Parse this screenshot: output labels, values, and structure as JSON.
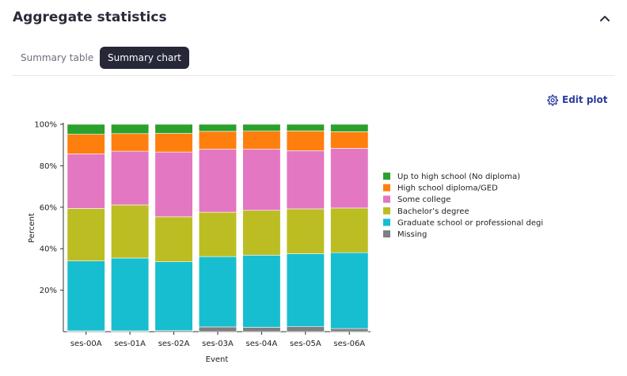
{
  "header": {
    "title": "Aggregate statistics"
  },
  "tabs": [
    {
      "label": "Summary table"
    },
    {
      "label": "Summary chart"
    }
  ],
  "toolbar": {
    "edit_plot_label": "Edit plot"
  },
  "icons": {
    "collapse": "chevron-up-icon",
    "edit": "gear-icon"
  },
  "chart_data": {
    "type": "bar",
    "stacked": true,
    "xlabel": "Event",
    "ylabel": "Percent",
    "ylim": [
      0,
      100
    ],
    "yticks": [
      "20%",
      "40%",
      "60%",
      "80%",
      "100%"
    ],
    "categories": [
      "ses-00A",
      "ses-01A",
      "ses-02A",
      "ses-03A",
      "ses-04A",
      "ses-05A",
      "ses-06A"
    ],
    "series": [
      {
        "name": "Missing",
        "color": "#7f7f7f",
        "values": [
          0.4,
          0.4,
          0.5,
          2.3,
          2.1,
          2.4,
          1.5
        ]
      },
      {
        "name": "Graduate school or professional degi",
        "color": "#17becf",
        "values": [
          33.7,
          35.1,
          33.2,
          33.9,
          34.8,
          35.2,
          36.6
        ]
      },
      {
        "name": "Bachelor’s degree",
        "color": "#bcbd22",
        "values": [
          25.3,
          25.6,
          21.7,
          21.4,
          21.6,
          21.6,
          21.5
        ]
      },
      {
        "name": "Some college",
        "color": "#e377c2",
        "values": [
          26.3,
          25.9,
          31.2,
          30.4,
          29.5,
          28.1,
          28.8
        ]
      },
      {
        "name": "High school diploma/GED",
        "color": "#ff7f0e",
        "values": [
          9.5,
          8.5,
          9.0,
          8.6,
          8.7,
          9.5,
          8.0
        ]
      },
      {
        "name": "Up to high school (No diploma)",
        "color": "#2ca02c",
        "values": [
          4.8,
          4.5,
          4.4,
          3.4,
          3.3,
          3.2,
          3.6
        ]
      }
    ],
    "legend_order": [
      "Up to high school (No diploma)",
      "High school diploma/GED",
      "Some college",
      "Bachelor’s degree",
      "Graduate school or professional degi",
      "Missing"
    ],
    "legend": "right"
  }
}
